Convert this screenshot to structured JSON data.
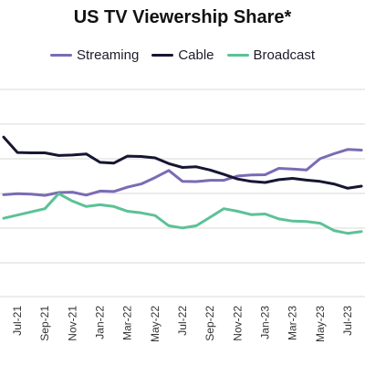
{
  "chart_data": {
    "type": "line",
    "title": "US TV Viewership Share*",
    "xlabel": "",
    "ylabel": "",
    "grid": true,
    "legend_position": "top",
    "ylim": [
      0.0,
      1.0
    ],
    "x": [
      "Jun-21",
      "Jul-21",
      "Aug-21",
      "Sep-21",
      "Oct-21",
      "Nov-21",
      "Dec-21",
      "Jan-22",
      "Feb-22",
      "Mar-22",
      "Apr-22",
      "May-22",
      "Jun-22",
      "Jul-22",
      "Aug-22",
      "Sep-22",
      "Oct-22",
      "Nov-22",
      "Dec-22",
      "Jan-23",
      "Feb-23",
      "Mar-23",
      "Apr-23",
      "May-23",
      "Jun-23",
      "Jul-23",
      "Aug-23"
    ],
    "xticks": [
      "Jul-21",
      "Sep-21",
      "Nov-21",
      "Jan-22",
      "Mar-22",
      "May-22",
      "Jul-22",
      "Sep-22",
      "Nov-22",
      "Jan-23",
      "Mar-23",
      "May-23",
      "Jul-23"
    ],
    "series": [
      {
        "name": "Streaming",
        "color": "#7b6bb5",
        "values": [
          0.475,
          0.48,
          0.478,
          0.472,
          0.485,
          0.487,
          0.473,
          0.492,
          0.49,
          0.51,
          0.525,
          0.555,
          0.588,
          0.537,
          0.536,
          0.542,
          0.542,
          0.562,
          0.567,
          0.568,
          0.598,
          0.595,
          0.59,
          0.643,
          0.666,
          0.686,
          0.683
        ]
      },
      {
        "name": "Cable",
        "color": "#161633",
        "values": [
          0.744,
          0.672,
          0.67,
          0.67,
          0.658,
          0.66,
          0.665,
          0.626,
          0.622,
          0.655,
          0.653,
          0.647,
          0.62,
          0.602,
          0.605,
          0.59,
          0.57,
          0.548,
          0.537,
          0.532,
          0.545,
          0.551,
          0.543,
          0.537,
          0.525,
          0.505,
          0.515
        ]
      },
      {
        "name": "Broadcast",
        "color": "#5cc197",
        "values": [
          0.365,
          0.38,
          0.395,
          0.41,
          0.48,
          0.445,
          0.42,
          0.428,
          0.42,
          0.398,
          0.39,
          0.378,
          0.33,
          0.32,
          0.33,
          0.37,
          0.41,
          0.398,
          0.382,
          0.385,
          0.362,
          0.352,
          0.35,
          0.342,
          0.308,
          0.295,
          0.303
        ]
      }
    ]
  }
}
